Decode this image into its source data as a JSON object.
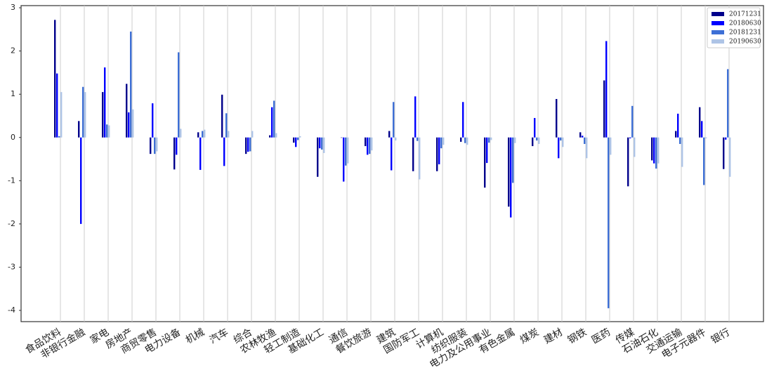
{
  "chart_data": {
    "type": "bar",
    "categories": [
      "食品饮料",
      "非银行金融",
      "家电",
      "房地产",
      "商贸零售",
      "电力设备",
      "机械",
      "汽车",
      "综合",
      "农林牧渔",
      "轻工制造",
      "基础化工",
      "通信",
      "餐饮旅游",
      "建筑",
      "国防军工",
      "计算机",
      "纺织服装",
      "电力及公用事业",
      "有色金属",
      "煤炭",
      "建材",
      "钢铁",
      "医药",
      "传媒",
      "石油石化",
      "交通运输",
      "电子元器件",
      "银行"
    ],
    "series": [
      {
        "name": "20171231",
        "color": "#00008b",
        "values": [
          2.72,
          0.38,
          1.05,
          1.24,
          -0.38,
          -0.74,
          0.12,
          0.99,
          -0.38,
          0.05,
          -0.12,
          -0.91,
          0,
          -0.2,
          0.15,
          -0.78,
          -0.78,
          -0.1,
          -1.16,
          -1.6,
          -0.2,
          0.89,
          0.12,
          1.32,
          -1.13,
          -0.53,
          0.15,
          0.7,
          -0.73
        ]
      },
      {
        "name": "20180630",
        "color": "#0000ff",
        "values": [
          1.48,
          -2.0,
          1.62,
          0.58,
          0.79,
          -0.4,
          -0.75,
          -0.66,
          -0.33,
          0.7,
          -0.22,
          -0.25,
          -1.02,
          -0.4,
          -0.76,
          0.95,
          -0.62,
          0.82,
          -0.59,
          -1.85,
          0.45,
          -0.48,
          0.04,
          2.23,
          -0.02,
          -0.6,
          0.55,
          0.38,
          -0.05
        ]
      },
      {
        "name": "20181231",
        "color": "#3d6fd6",
        "values": [
          0.03,
          1.17,
          0.3,
          2.45,
          -0.38,
          1.97,
          0.15,
          0.56,
          -0.32,
          0.85,
          -0.06,
          -0.28,
          -0.65,
          -0.38,
          0.82,
          -0.08,
          -0.25,
          -0.13,
          -0.12,
          -1.05,
          -0.07,
          -0.07,
          -0.15,
          -3.95,
          0.73,
          -0.72,
          -0.15,
          -1.1,
          1.58
        ]
      },
      {
        "name": "20190630",
        "color": "#aec4e6",
        "values": [
          1.05,
          1.05,
          0.28,
          0.65,
          -0.32,
          0.2,
          0.18,
          0.15,
          0.15,
          0.1,
          0.03,
          -0.36,
          -0.6,
          -0.3,
          -0.07,
          -0.97,
          -0.17,
          -0.17,
          -0.06,
          -0.13,
          -0.15,
          -0.22,
          -0.48,
          -0.4,
          -0.45,
          -0.6,
          -0.68,
          -0.02,
          -0.91
        ]
      }
    ],
    "ylim": [
      -4.26,
      3.05
    ],
    "yticks": [
      3,
      2,
      1,
      0,
      -1,
      -2,
      -3,
      -4
    ],
    "grid": true,
    "legend": "upper right"
  }
}
